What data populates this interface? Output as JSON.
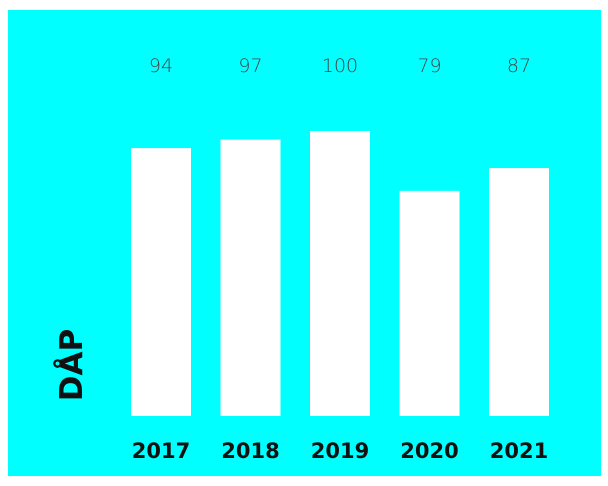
{
  "chart_data": {
    "type": "bar",
    "categories": [
      "2017",
      "2018",
      "2019",
      "2020",
      "2021"
    ],
    "values": [
      94,
      97,
      100,
      79,
      87
    ],
    "title": "",
    "xlabel": "",
    "ylabel": "DÅP",
    "ylim": [
      0,
      100
    ],
    "grid": false,
    "legend": "none"
  },
  "colors": {
    "background": "#00ffff",
    "bar": "#ffffff",
    "text": "#111111"
  }
}
